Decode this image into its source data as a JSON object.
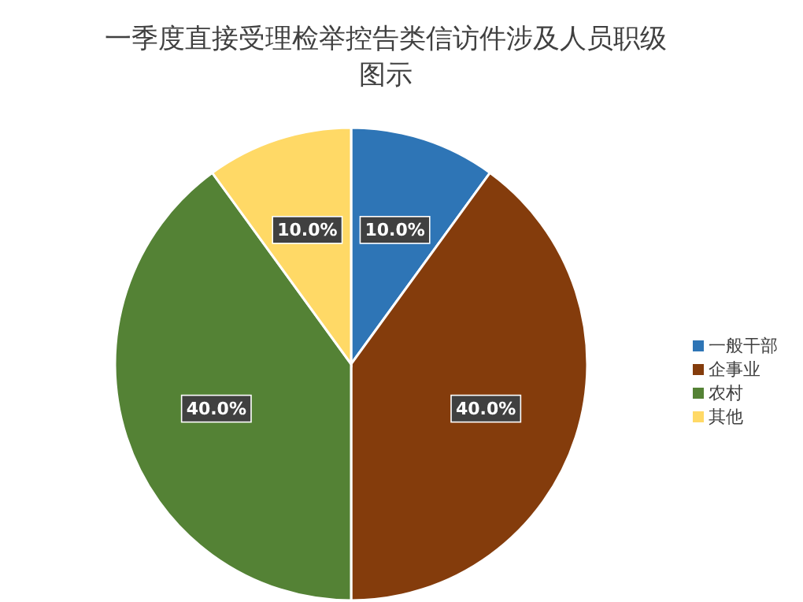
{
  "chart_data": {
    "type": "pie",
    "title": "一季度直接受理检举控告类信访件涉及人员职级图示",
    "categories": [
      "一般干部",
      "企事业",
      "农村",
      "其他"
    ],
    "values": [
      10,
      40,
      40,
      10
    ],
    "colors": [
      "#2e75b6",
      "#843c0c",
      "#548235",
      "#ffd966"
    ],
    "value_labels": [
      "10.0%",
      "40.0%",
      "40.0%",
      "10.0%"
    ],
    "legend": "right"
  }
}
